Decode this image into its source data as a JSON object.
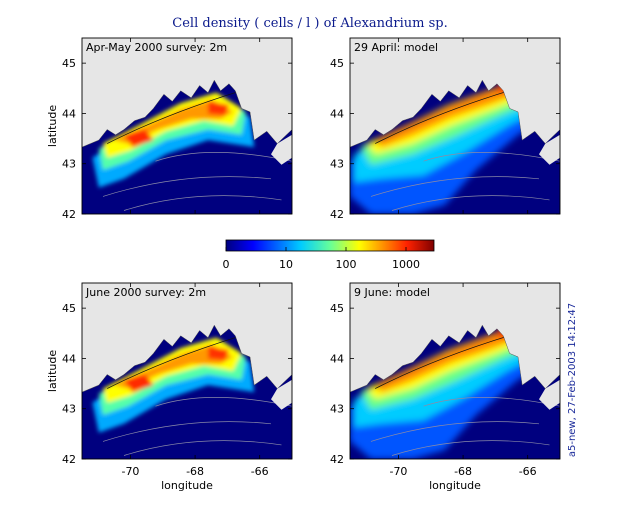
{
  "chart_data": {
    "type": "heatmap",
    "title": "Cell density ( cells / l ) of Alexandrium sp.",
    "stamp": "a5-new, 27-Feb-2003 14:12:47",
    "colorbar": {
      "ticks": [
        "0",
        "10",
        "100",
        "1000"
      ],
      "scale": "log",
      "colors": [
        "#00007f",
        "#0000ff",
        "#00aaff",
        "#55ffaa",
        "#ffff00",
        "#ff9900",
        "#ff0000",
        "#7f0000"
      ]
    },
    "xlabel": "longitude",
    "ylabel": "latitude",
    "xticks": [
      "-70",
      "-68",
      "-66"
    ],
    "yticks": [
      "42",
      "43",
      "44",
      "45"
    ],
    "xlim": [
      -71.5,
      -65
    ],
    "ylim": [
      42,
      45.5
    ],
    "panels": [
      {
        "label": "Apr-May 2000 survey: 2m",
        "kind": "survey"
      },
      {
        "label": "29 April: model",
        "kind": "model"
      },
      {
        "label": "June 2000 survey: 2m",
        "kind": "survey"
      },
      {
        "label": "9 June: model",
        "kind": "model"
      }
    ]
  },
  "colors": {
    "ocean": "#00007f",
    "land": "#e6e6e6",
    "contour": "#8a8aa8",
    "title": "#0b1a8c"
  }
}
